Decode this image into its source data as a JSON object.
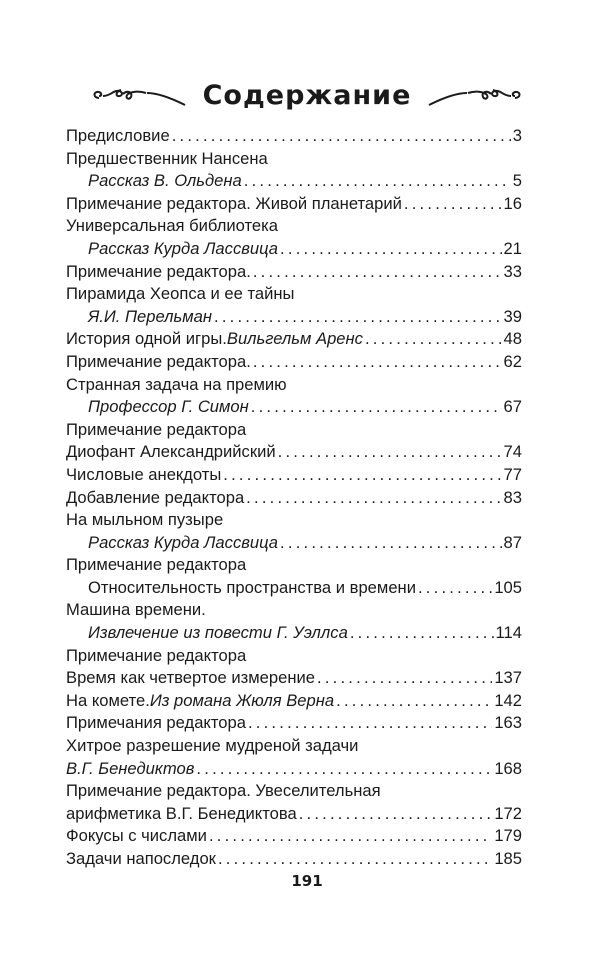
{
  "title": "Содержание",
  "entries": [
    {
      "text": "Предисловие",
      "italic": "",
      "page": "3",
      "indent": false
    },
    {
      "text": "Предшественник Нансена",
      "italic": "",
      "page": "",
      "indent": false
    },
    {
      "text": "",
      "italic": "Рассказ В. Ольдена",
      "page": "5",
      "indent": true
    },
    {
      "text": "Примечание редактора. Живой планетарий",
      "italic": "",
      "page": "16",
      "indent": false
    },
    {
      "text": "Универсальная библиотека",
      "italic": "",
      "page": "",
      "indent": false
    },
    {
      "text": "",
      "italic": "Рассказ Курда Лассвица",
      "page": "21",
      "indent": true
    },
    {
      "text": "Примечание редактора.",
      "italic": "",
      "page": "33",
      "indent": false
    },
    {
      "text": "Пирамида Хеопса и ее тайны",
      "italic": "",
      "page": "",
      "indent": false
    },
    {
      "text": "",
      "italic": "Я.И. Перельман",
      "page": "39",
      "indent": true
    },
    {
      "text": "История одной игры. ",
      "italic": "Вильгельм Аренс",
      "page": "48",
      "indent": false
    },
    {
      "text": "Примечание редактора.",
      "italic": "",
      "page": "62",
      "indent": false
    },
    {
      "text": "Странная задача на премию",
      "italic": "",
      "page": "",
      "indent": false
    },
    {
      "text": "",
      "italic": "Профессор Г. Симон",
      "page": "67",
      "indent": true
    },
    {
      "text": "Примечание редактора",
      "italic": "",
      "page": "",
      "indent": false
    },
    {
      "text": "Диофант Александрийский",
      "italic": "",
      "page": "74",
      "indent": false
    },
    {
      "text": "Числовые анекдоты",
      "italic": "",
      "page": "77",
      "indent": false
    },
    {
      "text": "Добавление редактора",
      "italic": "",
      "page": "83",
      "indent": false
    },
    {
      "text": "На мыльном пузыре",
      "italic": "",
      "page": "",
      "indent": false
    },
    {
      "text": "",
      "italic": "Рассказ Курда Лассвица",
      "page": "87",
      "indent": true
    },
    {
      "text": "Примечание редактора",
      "italic": "",
      "page": "",
      "indent": false
    },
    {
      "text": "Относительность пространства и времени",
      "italic": "",
      "page": "105",
      "indent": true
    },
    {
      "text": "Машина времени.",
      "italic": "",
      "page": "",
      "indent": false
    },
    {
      "text": "",
      "italic": "Извлечение из повести Г. Уэллса",
      "page": "114",
      "indent": true
    },
    {
      "text": "Примечание редактора",
      "italic": "",
      "page": "",
      "indent": false
    },
    {
      "text": "Время как четвертое измерение",
      "italic": "",
      "page": "137",
      "indent": false
    },
    {
      "text": "На комете. ",
      "italic": "Из романа Жюля Верна",
      "page": "142",
      "indent": false
    },
    {
      "text": "Примечания редактора",
      "italic": "",
      "page": "163",
      "indent": false
    },
    {
      "text": "Хитрое разрешение мудреной задачи",
      "italic": "",
      "page": "",
      "indent": false
    },
    {
      "text": "",
      "italic": "В.Г. Бенедиктов",
      "page": "168",
      "indent": false
    },
    {
      "text": "Примечание редактора. Увеселительная",
      "italic": "",
      "page": "",
      "indent": false
    },
    {
      "text": "арифметика В.Г. Бенедиктова",
      "italic": "",
      "page": "172",
      "indent": false
    },
    {
      "text": "Фокусы с числами",
      "italic": "",
      "page": "179",
      "indent": false
    },
    {
      "text": "Задачи напоследок",
      "italic": "",
      "page": "185",
      "indent": false
    }
  ],
  "page_number": "191"
}
